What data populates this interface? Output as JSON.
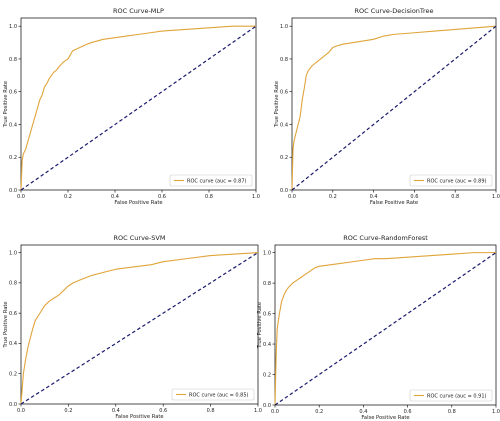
{
  "colors": {
    "roc": "#E0A43A",
    "diagonal": "#1A1A6E",
    "axis": "#000000"
  },
  "chart_data": [
    {
      "type": "line",
      "title": "ROC Curve-MLP",
      "xlabel": "False Positive Rate",
      "ylabel": "True Positive Rate",
      "xlim": [
        0,
        1
      ],
      "ylim": [
        0,
        1.05
      ],
      "xticks": [
        "0.0",
        "0.2",
        "0.4",
        "0.6",
        "0.8",
        "1.0"
      ],
      "yticks": [
        "0.0",
        "0.2",
        "0.4",
        "0.6",
        "0.8",
        "1.0"
      ],
      "legend": {
        "label": "ROC curve (auc = 0.87)",
        "position": "lower-right"
      },
      "grid": false,
      "series": [
        {
          "x": [
            0,
            0.005,
            0.01,
            0.02,
            0.03,
            0.04,
            0.05,
            0.06,
            0.07,
            0.08,
            0.09,
            0.1,
            0.11,
            0.12,
            0.13,
            0.14,
            0.15,
            0.16,
            0.18,
            0.2,
            0.22,
            0.25,
            0.28,
            0.3,
            0.35,
            0.4,
            0.45,
            0.5,
            0.55,
            0.6,
            0.7,
            0.8,
            0.9,
            1.0
          ],
          "y": [
            0,
            0.18,
            0.22,
            0.25,
            0.3,
            0.35,
            0.4,
            0.45,
            0.5,
            0.55,
            0.58,
            0.63,
            0.65,
            0.68,
            0.7,
            0.72,
            0.73,
            0.75,
            0.78,
            0.8,
            0.85,
            0.87,
            0.89,
            0.9,
            0.92,
            0.93,
            0.94,
            0.95,
            0.96,
            0.97,
            0.98,
            0.99,
            1.0,
            1.0
          ]
        },
        {
          "x": [
            0,
            1
          ],
          "y": [
            0,
            1
          ],
          "dashed": true
        }
      ]
    },
    {
      "type": "line",
      "title": "ROC Curve-DecisionTree",
      "xlabel": "False Positive Rate",
      "ylabel": "True Positive Rate",
      "xlim": [
        0,
        1
      ],
      "ylim": [
        0,
        1.05
      ],
      "xticks": [
        "0.0",
        "0.2",
        "0.4",
        "0.6",
        "0.8",
        "1.0"
      ],
      "yticks": [
        "0.0",
        "0.2",
        "0.4",
        "0.6",
        "0.8",
        "1.0"
      ],
      "legend": {
        "label": "ROC curve (auc = 0.89)",
        "position": "lower-right"
      },
      "grid": false,
      "series": [
        {
          "x": [
            0,
            0.005,
            0.01,
            0.02,
            0.03,
            0.04,
            0.05,
            0.06,
            0.07,
            0.08,
            0.1,
            0.12,
            0.14,
            0.16,
            0.18,
            0.2,
            0.22,
            0.25,
            0.3,
            0.35,
            0.4,
            0.45,
            0.5,
            0.6,
            0.7,
            0.8,
            0.9,
            1.0
          ],
          "y": [
            0,
            0.25,
            0.3,
            0.35,
            0.4,
            0.45,
            0.55,
            0.62,
            0.7,
            0.73,
            0.76,
            0.78,
            0.8,
            0.82,
            0.84,
            0.87,
            0.88,
            0.89,
            0.9,
            0.91,
            0.92,
            0.94,
            0.95,
            0.96,
            0.97,
            0.98,
            0.99,
            1.0
          ]
        },
        {
          "x": [
            0,
            1
          ],
          "y": [
            0,
            1
          ],
          "dashed": true
        }
      ]
    },
    {
      "type": "line",
      "title": "ROC Curve-SVM",
      "xlabel": "False Positive Rate",
      "ylabel": "True Positive Rate",
      "xlim": [
        0,
        1
      ],
      "ylim": [
        0,
        1.05
      ],
      "xticks": [
        "0.0",
        "0.2",
        "0.4",
        "0.6",
        "0.8",
        "1.0"
      ],
      "yticks": [
        "0.0",
        "0.2",
        "0.4",
        "0.6",
        "0.8",
        "1.0"
      ],
      "legend": {
        "label": "ROC curve (auc = 0.85)",
        "position": "lower-right"
      },
      "grid": false,
      "series": [
        {
          "x": [
            0,
            0.005,
            0.01,
            0.02,
            0.03,
            0.04,
            0.05,
            0.06,
            0.08,
            0.1,
            0.12,
            0.14,
            0.16,
            0.18,
            0.2,
            0.22,
            0.25,
            0.3,
            0.35,
            0.4,
            0.45,
            0.5,
            0.55,
            0.6,
            0.7,
            0.8,
            0.9,
            1.0
          ],
          "y": [
            0,
            0.1,
            0.2,
            0.3,
            0.38,
            0.44,
            0.5,
            0.55,
            0.6,
            0.65,
            0.68,
            0.7,
            0.72,
            0.75,
            0.78,
            0.8,
            0.82,
            0.85,
            0.87,
            0.89,
            0.9,
            0.91,
            0.92,
            0.94,
            0.96,
            0.98,
            0.99,
            1.0
          ]
        },
        {
          "x": [
            0,
            1
          ],
          "y": [
            0,
            1
          ],
          "dashed": true
        }
      ]
    },
    {
      "type": "line",
      "title": "ROC Curve-RandomForest",
      "xlabel": "False Positive Rate",
      "ylabel": "True Positive Rate",
      "xlim": [
        0,
        1
      ],
      "ylim": [
        0,
        1.05
      ],
      "xticks": [
        "0.0",
        "0.2",
        "0.4",
        "0.6",
        "0.8",
        "1.0"
      ],
      "yticks": [
        "0.0",
        "0.2",
        "0.4",
        "0.6",
        "0.8",
        "1.0"
      ],
      "legend": {
        "label": "ROC curve (auc = 0.91)",
        "position": "lower-right"
      },
      "grid": false,
      "series": [
        {
          "x": [
            0,
            0.005,
            0.01,
            0.02,
            0.03,
            0.04,
            0.05,
            0.06,
            0.08,
            0.1,
            0.12,
            0.14,
            0.16,
            0.18,
            0.2,
            0.25,
            0.3,
            0.35,
            0.4,
            0.45,
            0.5,
            0.6,
            0.7,
            0.8,
            0.9,
            1.0
          ],
          "y": [
            0,
            0.32,
            0.5,
            0.6,
            0.68,
            0.72,
            0.75,
            0.77,
            0.8,
            0.82,
            0.84,
            0.86,
            0.88,
            0.9,
            0.91,
            0.92,
            0.93,
            0.94,
            0.95,
            0.96,
            0.96,
            0.97,
            0.98,
            0.99,
            1.0,
            1.0
          ]
        },
        {
          "x": [
            0,
            1
          ],
          "y": [
            0,
            1
          ],
          "dashed": true
        }
      ]
    }
  ]
}
